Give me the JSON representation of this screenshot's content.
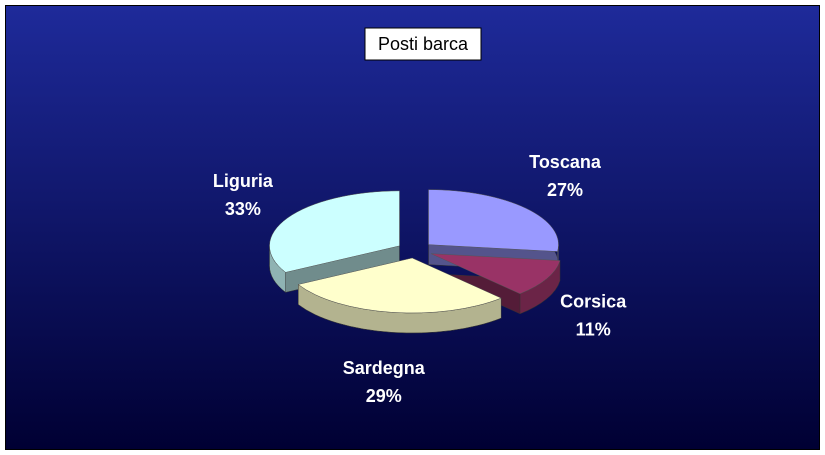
{
  "chart_data": {
    "type": "pie",
    "title": "Posti barca",
    "categories": [
      "Toscana",
      "Corsica",
      "Sardegna",
      "Liguria"
    ],
    "values": [
      27,
      11,
      29,
      33
    ],
    "value_labels": [
      "27%",
      "11%",
      "29%",
      "33%"
    ],
    "colors": [
      "#9999ff",
      "#993366",
      "#ffffcc",
      "#ccffff"
    ]
  }
}
